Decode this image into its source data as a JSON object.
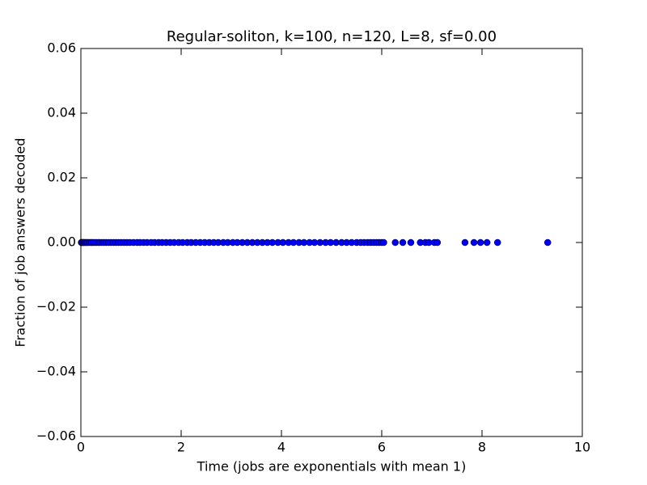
{
  "chart_data": {
    "type": "scatter",
    "title": "Regular-soliton, k=100, n=120, L=8, sf=0.00",
    "xlabel": "Time (jobs are exponentials with mean 1)",
    "ylabel": "Fraction of job answers decoded",
    "xlim": [
      0,
      10
    ],
    "xticks": [
      0,
      2,
      4,
      6,
      8,
      10
    ],
    "ylim": [
      -0.06,
      0.06
    ],
    "yticks": [
      {
        "value": -0.06,
        "label": "−0.06"
      },
      {
        "value": -0.04,
        "label": "−0.04"
      },
      {
        "value": -0.02,
        "label": "−0.02"
      },
      {
        "value": 0,
        "label": "0.00"
      },
      0.02,
      0.04,
      0.06
    ],
    "color": "#0000ff",
    "x": [
      0.01,
      0.02,
      0.03,
      0.05,
      0.06,
      0.08,
      0.1,
      0.12,
      0.14,
      0.17,
      0.2,
      0.22,
      0.25,
      0.28,
      0.31,
      0.35,
      0.38,
      0.42,
      0.46,
      0.5,
      0.55,
      0.6,
      0.65,
      0.7,
      0.75,
      0.8,
      0.86,
      0.92,
      0.98,
      1.05,
      1.12,
      1.18,
      1.25,
      1.32,
      1.4,
      1.47,
      1.55,
      1.62,
      1.7,
      1.78,
      1.86,
      1.95,
      2.03,
      2.12,
      2.2,
      2.29,
      2.38,
      2.47,
      2.56,
      2.65,
      2.74,
      2.84,
      2.93,
      3.03,
      3.12,
      3.22,
      3.32,
      3.42,
      3.52,
      3.62,
      3.72,
      3.82,
      3.93,
      4.03,
      4.14,
      4.24,
      4.35,
      4.45,
      4.56,
      4.66,
      4.77,
      4.88,
      4.98,
      5.09,
      5.2,
      5.3,
      5.4,
      5.5,
      5.58,
      5.65,
      5.72,
      5.78,
      5.84,
      5.9,
      5.95,
      6.0,
      6.04,
      6.27,
      6.42,
      6.58,
      6.77,
      6.87,
      6.94,
      7.05,
      7.11,
      7.66,
      7.84,
      7.97,
      8.1,
      8.31,
      9.31
    ],
    "y": [
      0,
      0,
      0,
      0,
      0,
      0,
      0,
      0,
      0,
      0,
      0,
      0,
      0,
      0,
      0,
      0,
      0,
      0,
      0,
      0,
      0,
      0,
      0,
      0,
      0,
      0,
      0,
      0,
      0,
      0,
      0,
      0,
      0,
      0,
      0,
      0,
      0,
      0,
      0,
      0,
      0,
      0,
      0,
      0,
      0,
      0,
      0,
      0,
      0,
      0,
      0,
      0,
      0,
      0,
      0,
      0,
      0,
      0,
      0,
      0,
      0,
      0,
      0,
      0,
      0,
      0,
      0,
      0,
      0,
      0,
      0,
      0,
      0,
      0,
      0,
      0,
      0,
      0,
      0,
      0,
      0,
      0,
      0,
      0,
      0,
      0,
      0,
      0,
      0,
      0,
      0,
      0,
      0,
      0,
      0,
      0,
      0,
      0,
      0,
      0,
      0
    ]
  }
}
